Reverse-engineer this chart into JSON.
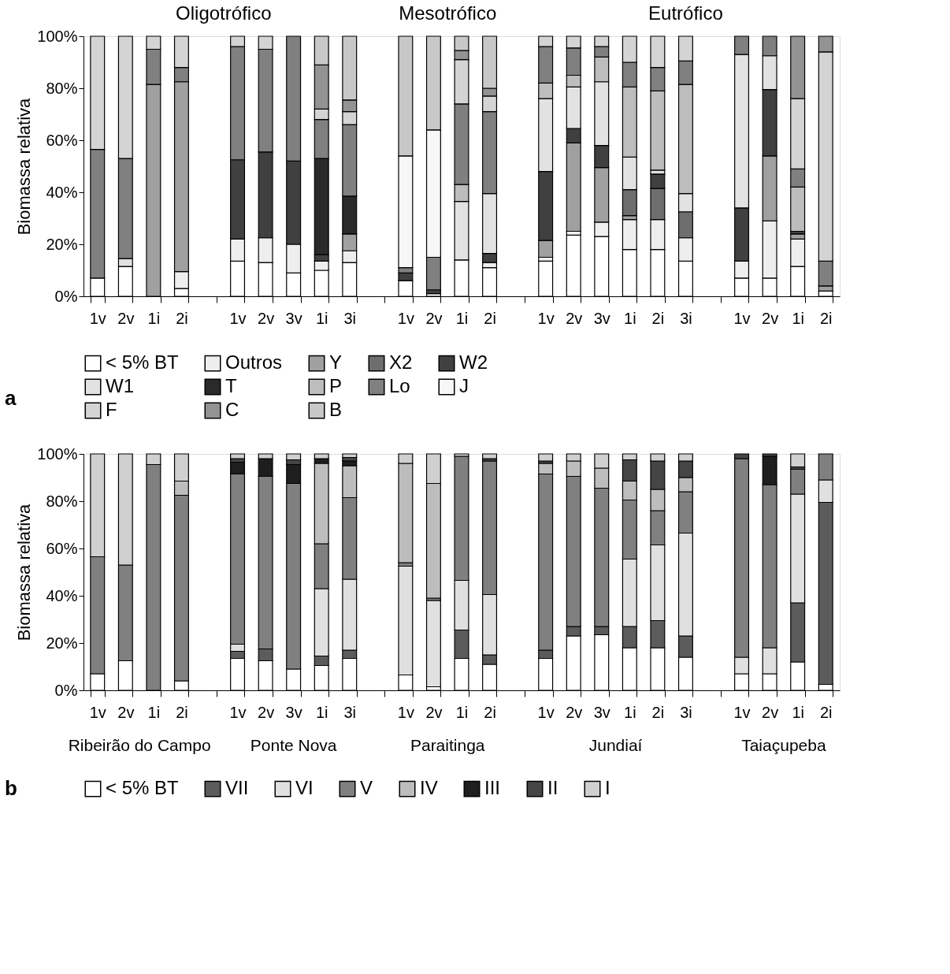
{
  "chart_data": [
    {
      "type": "bar",
      "stacked": true,
      "legend": "bottom",
      "grid": false,
      "ylabel": "Biomassa relativa",
      "categories": [
        "1v",
        "2v",
        "1i",
        "2i",
        null,
        "1v",
        "2v",
        "3v",
        "1i",
        "3i",
        null,
        "1v",
        "2v",
        "1i",
        "2i",
        null,
        "1v",
        "2v",
        "3v",
        "1i",
        "2i",
        "3i",
        null,
        "1v",
        "2v",
        "1i",
        "2i"
      ],
      "ylim": [
        0,
        100
      ],
      "yticks": [
        {
          "value": 0,
          "label": "0%"
        },
        {
          "value": 20,
          "label": "20%"
        },
        {
          "value": 40,
          "label": "40%"
        },
        {
          "value": 60,
          "label": "60%"
        },
        {
          "value": 80,
          "label": "80%"
        },
        {
          "value": 100,
          "label": "100%"
        }
      ],
      "annotations": [
        "Oligotrófico",
        "Mesotrófico",
        "Eutrófico",
        "a"
      ],
      "series": [
        {
          "name": "< 5% BT",
          "color": "#ffffff",
          "values": [
            7,
            11.5,
            null,
            3,
            null,
            13.5,
            13,
            9,
            10,
            13,
            null,
            6,
            1,
            14,
            11,
            null,
            13.5,
            23.5,
            23,
            18,
            18,
            13.5,
            null,
            7,
            7,
            11.5,
            2
          ]
        },
        {
          "name": "Outros",
          "color": "#eeeeee",
          "values": [
            null,
            null,
            null,
            6.5,
            null,
            8.5,
            9.5,
            11,
            3.5,
            4.5,
            null,
            null,
            null,
            null,
            2,
            null,
            1.5,
            1.5,
            5.5,
            11.5,
            11.5,
            9,
            null,
            6.5,
            22,
            10.5,
            null
          ]
        },
        {
          "name": "Y",
          "color": "#a0a0a0",
          "values": [
            null,
            null,
            81.5,
            73,
            null,
            null,
            null,
            null,
            null,
            6.5,
            null,
            null,
            null,
            null,
            null,
            null,
            6.5,
            34,
            21,
            1.5,
            null,
            null,
            null,
            null,
            25,
            2,
            2
          ]
        },
        {
          "name": "X2",
          "color": "#6e6e6e",
          "values": [
            null,
            null,
            null,
            null,
            null,
            null,
            null,
            null,
            null,
            null,
            null,
            null,
            null,
            null,
            null,
            null,
            null,
            null,
            null,
            10,
            12,
            10,
            null,
            null,
            null,
            null,
            null
          ]
        },
        {
          "name": "W2",
          "color": "#404040",
          "values": [
            null,
            null,
            null,
            null,
            null,
            30.5,
            33,
            32,
            2.5,
            null,
            null,
            3,
            1.5,
            null,
            3.5,
            null,
            26.5,
            5.5,
            8.5,
            null,
            5.5,
            null,
            null,
            20.5,
            25.5,
            1,
            null
          ]
        },
        {
          "name": "W1",
          "color": "#e2e2e2",
          "values": [
            null,
            3,
            null,
            null,
            null,
            null,
            null,
            null,
            null,
            null,
            null,
            null,
            null,
            22.5,
            23,
            null,
            28,
            16,
            24.5,
            12.5,
            1.5,
            7,
            null,
            59,
            13,
            null,
            null
          ]
        },
        {
          "name": "T",
          "color": "#2a2a2a",
          "values": [
            null,
            null,
            null,
            null,
            null,
            null,
            null,
            null,
            37,
            14.5,
            null,
            null,
            null,
            null,
            null,
            null,
            null,
            null,
            null,
            null,
            null,
            null,
            null,
            null,
            null,
            null,
            null
          ]
        },
        {
          "name": "P",
          "color": "#bdbdbd",
          "values": [
            null,
            null,
            null,
            null,
            null,
            null,
            null,
            null,
            null,
            null,
            null,
            null,
            null,
            6.5,
            null,
            null,
            6,
            4.5,
            9.5,
            27,
            30.5,
            42,
            null,
            null,
            null,
            17,
            null
          ]
        },
        {
          "name": "Lo",
          "color": "#808080",
          "values": [
            49.5,
            38.5,
            13.5,
            5.5,
            null,
            43.5,
            39.5,
            48,
            15,
            27.5,
            null,
            2,
            12.5,
            31,
            31.5,
            null,
            14,
            10.5,
            4,
            9.5,
            9,
            9,
            null,
            7,
            7.5,
            7,
            9.5
          ]
        },
        {
          "name": "J",
          "color": "#f7f7f7",
          "values": [
            null,
            null,
            null,
            null,
            null,
            null,
            null,
            null,
            null,
            null,
            null,
            43,
            49,
            null,
            null,
            null,
            null,
            null,
            null,
            null,
            null,
            null,
            null,
            null,
            null,
            null,
            null
          ]
        },
        {
          "name": "F",
          "color": "#d4d4d4",
          "values": [
            43.5,
            47,
            5,
            12,
            null,
            4,
            5,
            null,
            4,
            5,
            null,
            null,
            null,
            17,
            6,
            null,
            4,
            4.5,
            4,
            10,
            12,
            9.5,
            null,
            null,
            null,
            27,
            80.5
          ]
        },
        {
          "name": "C",
          "color": "#939393",
          "values": [
            null,
            null,
            null,
            null,
            null,
            null,
            null,
            null,
            17,
            4.5,
            null,
            null,
            null,
            3.5,
            3,
            null,
            null,
            null,
            null,
            null,
            null,
            null,
            null,
            null,
            null,
            24,
            6
          ]
        },
        {
          "name": "B",
          "color": "#c8c8c8",
          "values": [
            null,
            null,
            null,
            null,
            null,
            null,
            null,
            null,
            11,
            24.5,
            null,
            46,
            36,
            5.5,
            20,
            null,
            null,
            null,
            null,
            null,
            null,
            null,
            null,
            null,
            null,
            null,
            null
          ]
        }
      ]
    },
    {
      "type": "bar",
      "stacked": true,
      "legend": "bottom",
      "grid": false,
      "ylabel": "Biomassa relativa",
      "categories": [
        "1v",
        "2v",
        "1i",
        "2i",
        null,
        "1v",
        "2v",
        "3v",
        "1i",
        "3i",
        null,
        "1v",
        "2v",
        "1i",
        "2i",
        null,
        "1v",
        "2v",
        "3v",
        "1i",
        "2i",
        "3i",
        null,
        "1v",
        "2v",
        "1i",
        "2i"
      ],
      "ylim": [
        0,
        100
      ],
      "yticks": [
        {
          "value": 0,
          "label": "0%"
        },
        {
          "value": 20,
          "label": "20%"
        },
        {
          "value": 40,
          "label": "40%"
        },
        {
          "value": 60,
          "label": "60%"
        },
        {
          "value": 80,
          "label": "80%"
        },
        {
          "value": 100,
          "label": "100%"
        }
      ],
      "annotations": [
        "Ribeirão do Campo",
        "Ponte Nova",
        "Paraitinga",
        "Jundiaí",
        "Taiaçupeba",
        "b"
      ],
      "series": [
        {
          "name": "< 5% BT",
          "color": "#ffffff",
          "values": [
            7,
            12.5,
            null,
            4,
            null,
            13.5,
            12.5,
            9,
            10.5,
            13.5,
            null,
            6.5,
            1.5,
            13.5,
            11,
            null,
            13.5,
            23,
            23.5,
            18,
            18,
            14,
            null,
            7,
            7,
            12,
            2.5
          ]
        },
        {
          "name": "VII",
          "color": "#5c5c5c",
          "values": [
            null,
            null,
            null,
            null,
            null,
            3,
            5,
            null,
            4,
            3.5,
            null,
            null,
            null,
            12,
            4,
            null,
            3.5,
            4,
            3.5,
            9,
            11.5,
            9,
            null,
            null,
            null,
            25,
            77
          ]
        },
        {
          "name": "VI",
          "color": "#e0e0e0",
          "values": [
            null,
            null,
            null,
            null,
            null,
            3,
            null,
            null,
            28.5,
            30,
            null,
            46,
            36.5,
            21,
            25.5,
            null,
            null,
            null,
            null,
            28.5,
            32,
            43.5,
            null,
            7,
            11,
            46,
            9.5
          ]
        },
        {
          "name": "V",
          "color": "#808080",
          "values": [
            49.5,
            40.5,
            95.5,
            78.5,
            null,
            72,
            73,
            78.5,
            19,
            34.5,
            null,
            1.5,
            1,
            52.5,
            56.5,
            null,
            74.5,
            63.5,
            58.5,
            25,
            14.5,
            17.5,
            null,
            84,
            69,
            10.5,
            11
          ]
        },
        {
          "name": "IV",
          "color": "#bdbdbd",
          "values": [
            null,
            null,
            null,
            6,
            null,
            null,
            null,
            null,
            34,
            13.5,
            null,
            42,
            48.5,
            null,
            null,
            null,
            4.5,
            6.5,
            8.5,
            8,
            9,
            6,
            null,
            null,
            null,
            null,
            null
          ]
        },
        {
          "name": "III",
          "color": "#1e1e1e",
          "values": [
            null,
            null,
            null,
            null,
            null,
            5,
            7.5,
            8,
            2,
            2,
            null,
            null,
            null,
            null,
            null,
            null,
            null,
            null,
            null,
            null,
            null,
            null,
            null,
            null,
            12,
            null,
            null
          ]
        },
        {
          "name": "II",
          "color": "#454545",
          "values": [
            null,
            null,
            null,
            null,
            null,
            1.5,
            null,
            2,
            null,
            1.5,
            null,
            null,
            null,
            null,
            1,
            null,
            1,
            null,
            null,
            9,
            12,
            7,
            null,
            2,
            1,
            1,
            null
          ]
        },
        {
          "name": "I",
          "color": "#d0d0d0",
          "values": [
            43.5,
            47,
            4.5,
            11.5,
            null,
            2,
            2,
            2.5,
            2,
            1.5,
            null,
            4,
            12.5,
            1,
            2,
            null,
            3,
            3,
            6,
            2.5,
            3,
            3,
            null,
            null,
            null,
            5.5,
            null
          ]
        }
      ]
    }
  ]
}
